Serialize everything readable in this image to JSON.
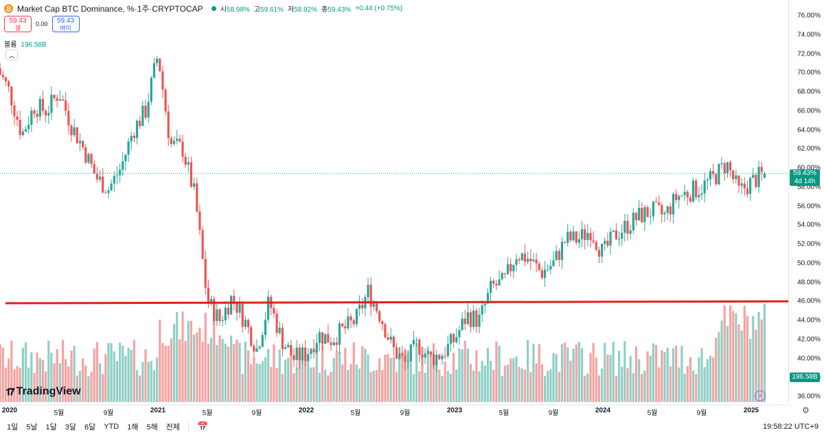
{
  "legend": {
    "coin_symbol": "₿",
    "title": "Market Cap BTC Dominance, %·1주·CRYPTOCAP",
    "open_label": "시",
    "open": "58.98%",
    "high_label": "고",
    "high": "59.61%",
    "low_label": "저",
    "low": "58.92%",
    "close_label": "종",
    "close": "59.43%",
    "change": "+0.44 (+0.75%)"
  },
  "trade": {
    "sell_price": "59.43",
    "sell_label": "셀",
    "spread": "0.00",
    "buy_price": "59.43",
    "buy_label": "바이"
  },
  "volume_legend": {
    "label": "볼륨",
    "value": "196.58B"
  },
  "price_tag": {
    "price": "59.43%",
    "countdown": "4d 14h"
  },
  "volume_tag": "196.58B",
  "logo_text": "TradingView",
  "bottom_bar": {
    "ranges": [
      "1일",
      "5날",
      "1달",
      "3달",
      "6달",
      "YTD",
      "1해",
      "5해",
      "전체"
    ],
    "clock": "19:58:22 UTC+9"
  },
  "colors": {
    "up": "#26a69a",
    "down": "#ef5350",
    "line": "#e01e1e",
    "vol_up": "#8fcfc6",
    "vol_down": "#f5a3a1",
    "accent": "#089981"
  },
  "chart_data": {
    "type": "candlestick",
    "title": "Market Cap BTC Dominance, %",
    "interval": "1주",
    "xlabel": "",
    "ylabel": "",
    "ylim": [
      35.5,
      77
    ],
    "y_ticks": [
      "76.00%",
      "74.00%",
      "72.00%",
      "70.00%",
      "68.00%",
      "66.00%",
      "64.00%",
      "62.00%",
      "60.00%",
      "58.00%",
      "56.00%",
      "54.00%",
      "52.00%",
      "50.00%",
      "48.00%",
      "46.00%",
      "44.00%",
      "42.00%",
      "40.00%",
      "38.00%",
      "36.00%"
    ],
    "x_ticks": [
      {
        "label": "2020",
        "date": "2020-01",
        "year": true
      },
      {
        "label": "5월",
        "date": "2020-05"
      },
      {
        "label": "9월",
        "date": "2020-09"
      },
      {
        "label": "2021",
        "date": "2021-01",
        "year": true
      },
      {
        "label": "5월",
        "date": "2021-05"
      },
      {
        "label": "9월",
        "date": "2021-09"
      },
      {
        "label": "2022",
        "date": "2022-01",
        "year": true
      },
      {
        "label": "5월",
        "date": "2022-05"
      },
      {
        "label": "9월",
        "date": "2022-09"
      },
      {
        "label": "2023",
        "date": "2023-01",
        "year": true
      },
      {
        "label": "5월",
        "date": "2023-05"
      },
      {
        "label": "9월",
        "date": "2023-09"
      },
      {
        "label": "2024",
        "date": "2024-01",
        "year": true
      },
      {
        "label": "5월",
        "date": "2024-05"
      },
      {
        "label": "9월",
        "date": "2024-09"
      },
      {
        "label": "2025",
        "date": "2025-01",
        "year": true
      }
    ],
    "close_path": [
      [
        "2019-12",
        70.5
      ],
      [
        "2020-01",
        68.0
      ],
      [
        "2020-02",
        63.5
      ],
      [
        "2020-03",
        66.5
      ],
      [
        "2020-04",
        66.0
      ],
      [
        "2020-05",
        68.0
      ],
      [
        "2020-06",
        64.5
      ],
      [
        "2020-07",
        62.0
      ],
      [
        "2020-08",
        59.0
      ],
      [
        "2020-09",
        57.8
      ],
      [
        "2020-10",
        60.0
      ],
      [
        "2020-11",
        64.0
      ],
      [
        "2020-12",
        66.0
      ],
      [
        "2021-01",
        72.0
      ],
      [
        "2021-02",
        62.5
      ],
      [
        "2021-03",
        62.0
      ],
      [
        "2021-04",
        57.0
      ],
      [
        "2021-05",
        46.0
      ],
      [
        "2021-06",
        44.0
      ],
      [
        "2021-07",
        46.5
      ],
      [
        "2021-08",
        44.0
      ],
      [
        "2021-09",
        41.0
      ],
      [
        "2021-10",
        46.0
      ],
      [
        "2021-11",
        42.0
      ],
      [
        "2021-12",
        40.0
      ],
      [
        "2022-01",
        40.5
      ],
      [
        "2022-02",
        42.5
      ],
      [
        "2022-03",
        42.0
      ],
      [
        "2022-04",
        43.0
      ],
      [
        "2022-05",
        44.0
      ],
      [
        "2022-06",
        47.0
      ],
      [
        "2022-07",
        44.5
      ],
      [
        "2022-08",
        41.0
      ],
      [
        "2022-09",
        39.5
      ],
      [
        "2022-10",
        41.5
      ],
      [
        "2022-11",
        40.0
      ],
      [
        "2022-12",
        40.5
      ],
      [
        "2023-01",
        42.0
      ],
      [
        "2023-02",
        44.5
      ],
      [
        "2023-03",
        44.0
      ],
      [
        "2023-04",
        47.5
      ],
      [
        "2023-05",
        48.0
      ],
      [
        "2023-06",
        51.0
      ],
      [
        "2023-07",
        50.5
      ],
      [
        "2023-08",
        49.0
      ],
      [
        "2023-09",
        50.0
      ],
      [
        "2023-10",
        52.5
      ],
      [
        "2023-11",
        52.5
      ],
      [
        "2023-12",
        53.5
      ],
      [
        "2024-01",
        51.0
      ],
      [
        "2024-02",
        53.0
      ],
      [
        "2024-03",
        54.0
      ],
      [
        "2024-04",
        55.0
      ],
      [
        "2024-05",
        55.5
      ],
      [
        "2024-06",
        55.0
      ],
      [
        "2024-07",
        57.0
      ],
      [
        "2024-08",
        57.5
      ],
      [
        "2024-09",
        58.0
      ],
      [
        "2024-10",
        59.0
      ],
      [
        "2024-11",
        60.5
      ],
      [
        "2024-12",
        57.5
      ],
      [
        "2025-01",
        58.5
      ],
      [
        "2025-02",
        59.4
      ]
    ],
    "horizontal_line": {
      "value_start": 45.8,
      "value_end": 46.0,
      "from": "2019-12",
      "to": "2025-02"
    },
    "last_price": 59.43,
    "volume_last": "196.58B"
  }
}
